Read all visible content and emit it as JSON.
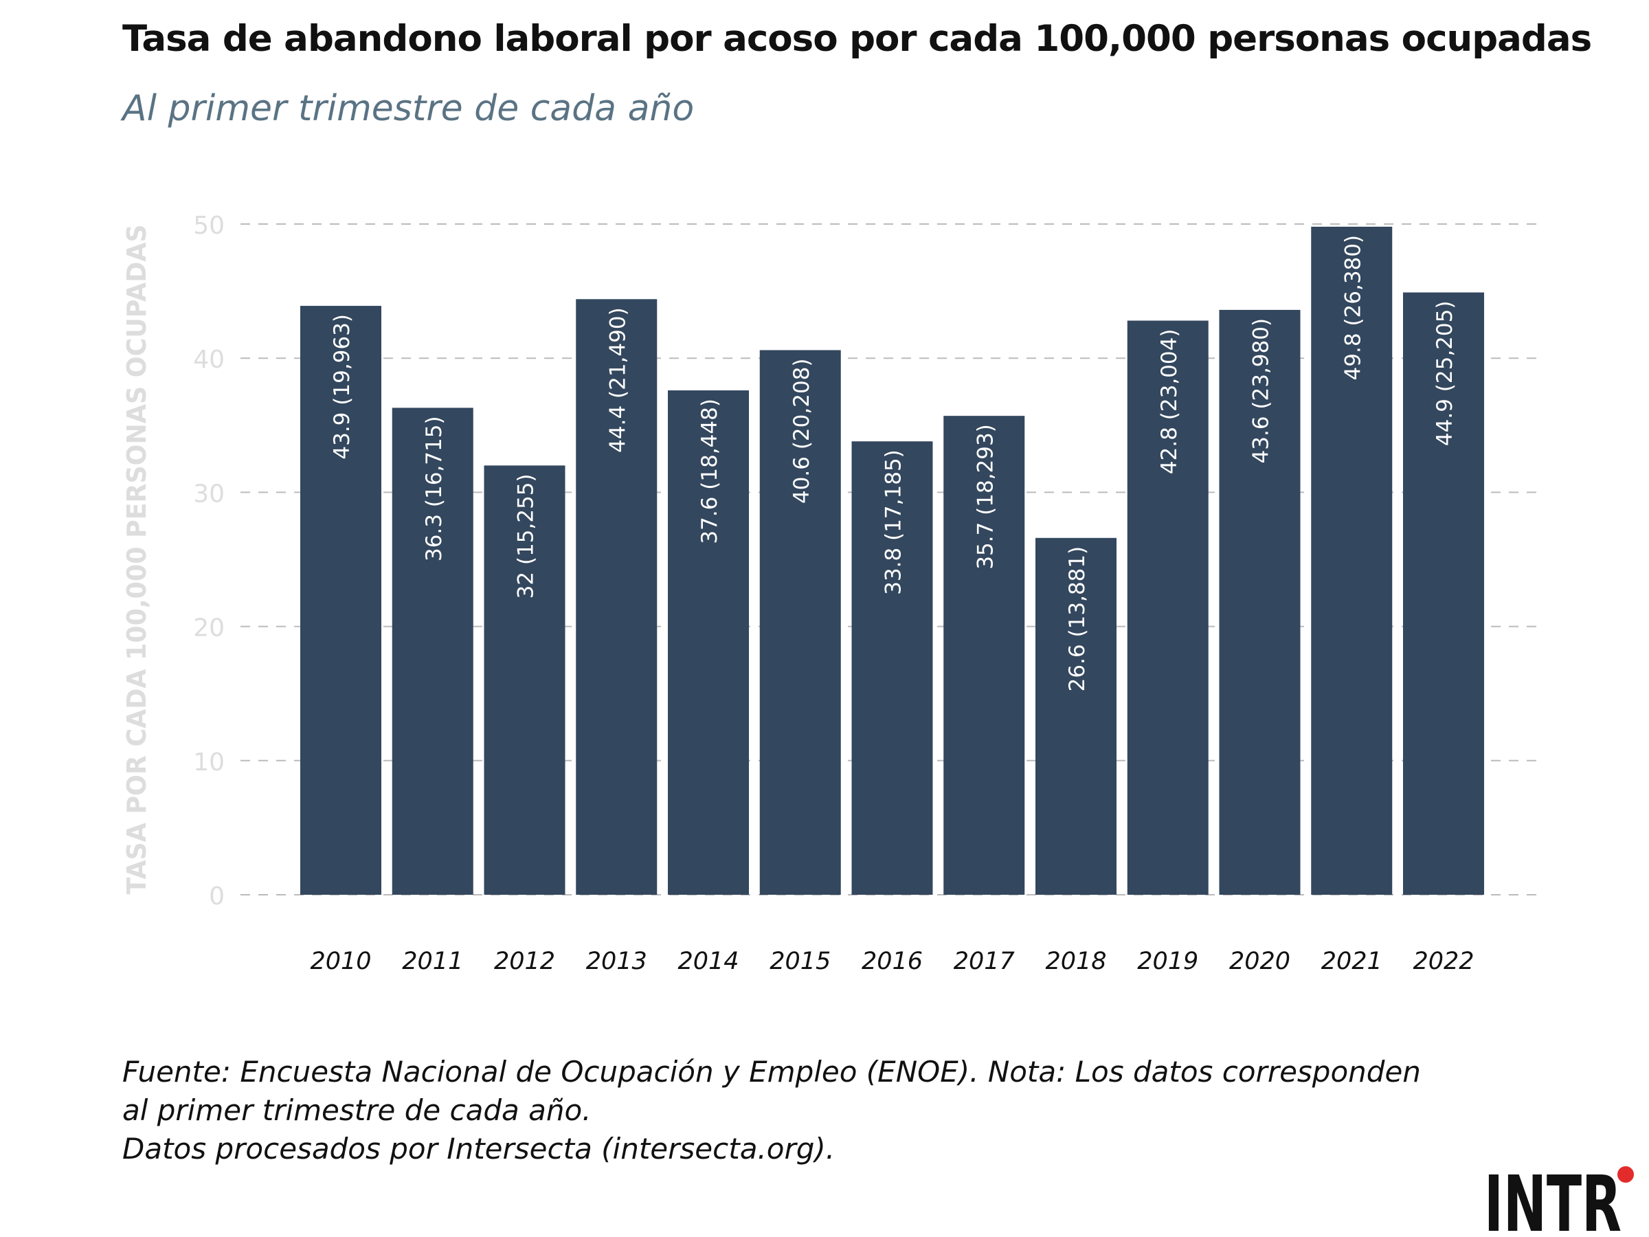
{
  "title": "Tasa de abandono laboral por acoso por cada 100,000 personas ocupadas",
  "subtitle": "Al primer trimestre de cada año",
  "source": {
    "line1": "Fuente: Encuesta Nacional de Ocupación y Empleo (ENOE). Nota: Los datos corresponden",
    "line2": "al primer trimestre de cada año.",
    "line3": "Datos procesados por Intersecta (intersecta.org)."
  },
  "logo_text": "INTR",
  "colors": {
    "bar": "#33475e",
    "grid": "#bbbbbb",
    "axis_text": "#dddddd",
    "ylabel": "#dddddd",
    "bar_label": "#ffffff",
    "x_tick": "#111111",
    "logo_accent": "#e32b2b"
  },
  "chart_data": {
    "type": "bar",
    "categories": [
      "2010",
      "2011",
      "2012",
      "2013",
      "2014",
      "2015",
      "2016",
      "2017",
      "2018",
      "2019",
      "2020",
      "2021",
      "2022"
    ],
    "values": [
      43.9,
      36.3,
      32,
      44.4,
      37.6,
      40.6,
      33.8,
      35.7,
      26.6,
      42.8,
      43.6,
      49.8,
      44.9
    ],
    "counts": [
      "19,963",
      "16,715",
      "15,255",
      "21,490",
      "18,448",
      "20,208",
      "17,185",
      "18,293",
      "13,881",
      "23,004",
      "23,980",
      "26,380",
      "25,205"
    ],
    "ylabel": "TASA POR CADA 100,000 PERSONAS OCUPADAS",
    "xlabel": "",
    "ylim": [
      0,
      50
    ],
    "yticks": [
      0,
      10,
      20,
      30,
      40,
      50
    ],
    "grid": true,
    "bar_label_orientation": "vertical",
    "legend": "none"
  }
}
